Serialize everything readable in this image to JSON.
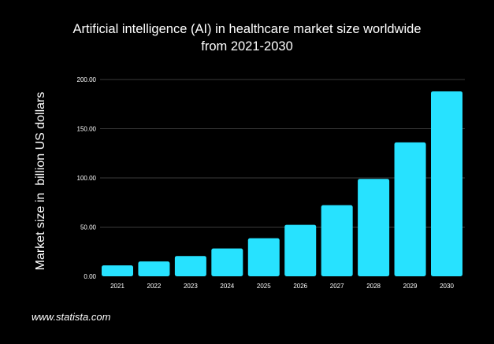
{
  "chart_data": {
    "type": "bar",
    "title_lines": [
      "Artificial intelligence (AI) in healthcare market size worldwide",
      "from 2021-2030"
    ],
    "xlabel": "",
    "ylabel": "Market size in  billion US dollars",
    "categories": [
      "2021",
      "2022",
      "2023",
      "2024",
      "2025",
      "2026",
      "2027",
      "2028",
      "2029",
      "2030"
    ],
    "values": [
      11.06,
      15.1,
      20.65,
      28.3,
      38.7,
      52.34,
      72.3,
      99.0,
      136.1,
      187.95
    ],
    "ylim": [
      0,
      200
    ],
    "yticks": [
      "0.00",
      "50.00",
      "100.00",
      "150.00",
      "200.00"
    ],
    "ytick_values": [
      0,
      50,
      100,
      150,
      200
    ],
    "grid": true,
    "bar_color": "#27e2ff",
    "grid_color": "#3a3a3a"
  },
  "footer": "www.statista.com"
}
